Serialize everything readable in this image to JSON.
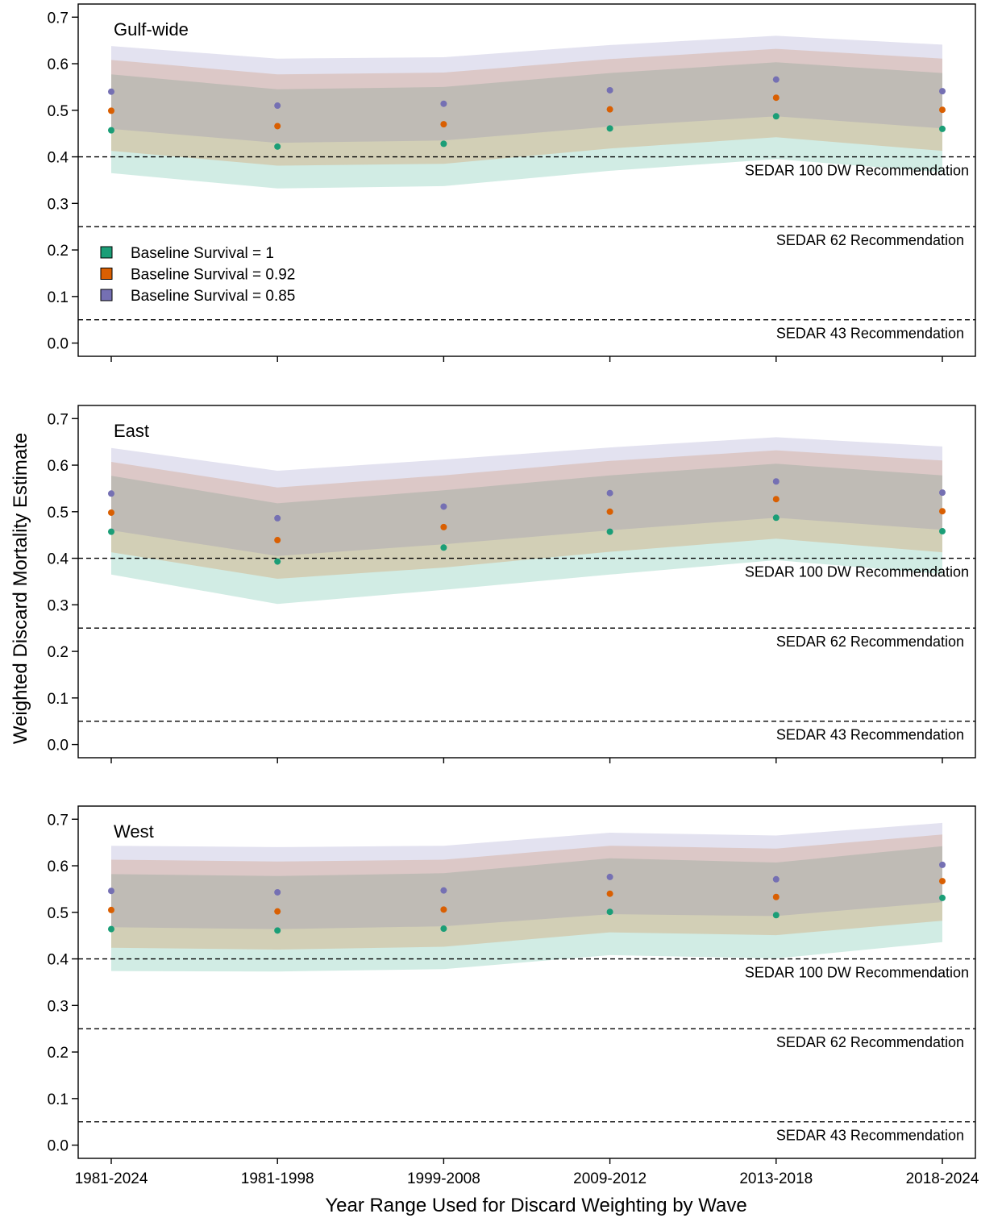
{
  "chart_data": {
    "type": "scatter",
    "xlabel": "Year Range Used for Discard Weighting by Wave",
    "ylabel": "Weighted Discard Mortality Estimate",
    "categories": [
      "1981-2024",
      "1981-1998",
      "1999-2008",
      "2009-2012",
      "2013-2018",
      "2018-2024"
    ],
    "ylim": [
      -0.02,
      0.73
    ],
    "yticks": [
      "0.0",
      "0.1",
      "0.2",
      "0.3",
      "0.4",
      "0.5",
      "0.6",
      "0.7"
    ],
    "grid": false,
    "legend": {
      "placement": "left",
      "entries": [
        {
          "label": "Baseline Survival = 1",
          "color": "#1b9e77"
        },
        {
          "label": "Baseline Survival = 0.92",
          "color": "#d95f02"
        },
        {
          "label": "Baseline Survival = 0.85",
          "color": "#7570b3"
        }
      ]
    },
    "reference_lines": [
      {
        "value": 0.4,
        "label": "SEDAR 100 DW Recommendation"
      },
      {
        "value": 0.25,
        "label": "SEDAR 62 Recommendation"
      },
      {
        "value": 0.05,
        "label": "SEDAR 43 Recommendation"
      }
    ],
    "panels": [
      {
        "title": "Gulf-wide",
        "series": [
          {
            "values": [
              0.457,
              0.422,
              0.428,
              0.461,
              0.487,
              0.46
            ],
            "lower": [
              0.365,
              0.332,
              0.337,
              0.37,
              0.395,
              0.367
            ],
            "upper": [
              0.577,
              0.545,
              0.55,
              0.58,
              0.603,
              0.58
            ]
          },
          {
            "values": [
              0.499,
              0.466,
              0.47,
              0.502,
              0.527,
              0.501
            ],
            "lower": [
              0.413,
              0.381,
              0.385,
              0.418,
              0.442,
              0.413
            ],
            "upper": [
              0.608,
              0.577,
              0.581,
              0.61,
              0.632,
              0.611
            ]
          },
          {
            "values": [
              0.54,
              0.51,
              0.514,
              0.543,
              0.566,
              0.541
            ],
            "lower": [
              0.46,
              0.43,
              0.435,
              0.465,
              0.487,
              0.461
            ],
            "upper": [
              0.638,
              0.611,
              0.614,
              0.64,
              0.66,
              0.641
            ]
          }
        ]
      },
      {
        "title": "East",
        "series": [
          {
            "values": [
              0.457,
              0.393,
              0.423,
              0.457,
              0.487,
              0.458
            ],
            "lower": [
              0.365,
              0.302,
              0.332,
              0.365,
              0.396,
              0.366
            ],
            "upper": [
              0.577,
              0.518,
              0.546,
              0.578,
              0.603,
              0.578
            ]
          },
          {
            "values": [
              0.498,
              0.439,
              0.467,
              0.5,
              0.527,
              0.501
            ],
            "lower": [
              0.413,
              0.356,
              0.38,
              0.414,
              0.442,
              0.413
            ],
            "upper": [
              0.607,
              0.552,
              0.578,
              0.609,
              0.632,
              0.61
            ]
          },
          {
            "values": [
              0.539,
              0.486,
              0.511,
              0.54,
              0.565,
              0.541
            ],
            "lower": [
              0.46,
              0.405,
              0.43,
              0.46,
              0.487,
              0.461
            ],
            "upper": [
              0.637,
              0.588,
              0.612,
              0.638,
              0.66,
              0.64
            ]
          }
        ]
      },
      {
        "title": "West",
        "series": [
          {
            "values": [
              0.464,
              0.461,
              0.465,
              0.501,
              0.494,
              0.531
            ],
            "lower": [
              0.374,
              0.373,
              0.378,
              0.408,
              0.401,
              0.436
            ],
            "upper": [
              0.582,
              0.578,
              0.584,
              0.616,
              0.607,
              0.642
            ]
          },
          {
            "values": [
              0.505,
              0.502,
              0.506,
              0.54,
              0.533,
              0.567
            ],
            "lower": [
              0.424,
              0.42,
              0.426,
              0.457,
              0.451,
              0.482
            ],
            "upper": [
              0.613,
              0.609,
              0.613,
              0.643,
              0.637,
              0.667
            ]
          },
          {
            "values": [
              0.546,
              0.543,
              0.547,
              0.576,
              0.571,
              0.602
            ],
            "lower": [
              0.468,
              0.464,
              0.47,
              0.496,
              0.492,
              0.522
            ],
            "upper": [
              0.643,
              0.64,
              0.643,
              0.671,
              0.665,
              0.692
            ]
          }
        ]
      }
    ]
  }
}
